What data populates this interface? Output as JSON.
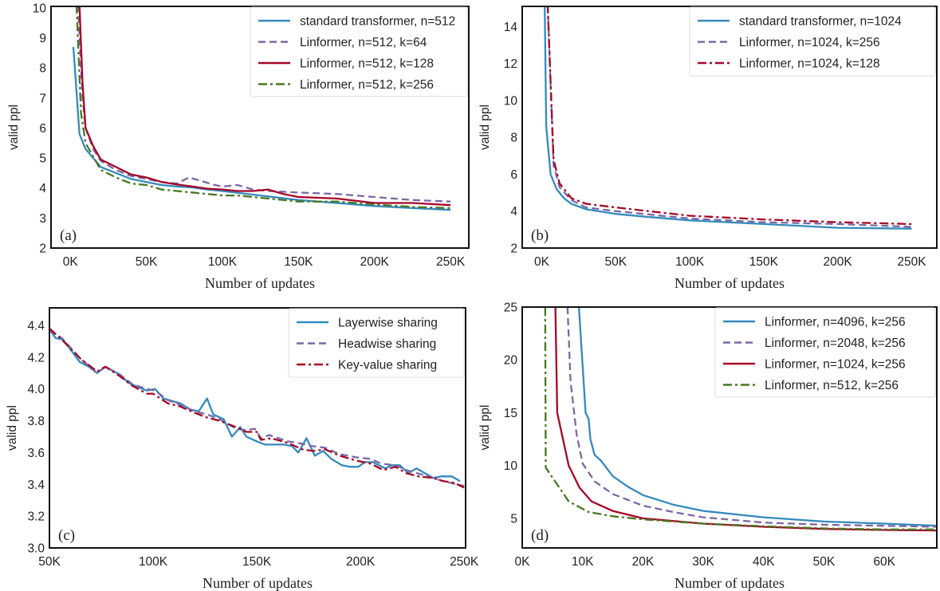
{
  "chart_data": [
    {
      "type": "line",
      "panel_label": "(a)",
      "xlabel": "Number of updates",
      "ylabel": "valid ppl",
      "xlim": [
        -12.7,
        262
      ],
      "ylim": [
        2,
        10.05
      ],
      "xticks": [
        0,
        50,
        100,
        150,
        200,
        250
      ],
      "xtick_labels": [
        "0K",
        "50K",
        "100K",
        "150K",
        "200K",
        "250K"
      ],
      "yticks": [
        2,
        3,
        4,
        5,
        6,
        7,
        8,
        9,
        10
      ],
      "ytick_labels": [
        "2",
        "3",
        "4",
        "5",
        "6",
        "7",
        "8",
        "9",
        "10"
      ],
      "grid": false,
      "legend_position": "top-right",
      "series": [
        {
          "name": "standard transformer, n=512",
          "color": "#348ABD",
          "linestyle": "solid",
          "x": [
            2,
            6,
            10,
            20,
            30,
            40,
            50,
            60,
            70,
            80,
            90,
            100,
            125,
            150,
            175,
            200,
            225,
            250
          ],
          "y": [
            8.7,
            5.8,
            5.3,
            4.7,
            4.5,
            4.3,
            4.2,
            4.1,
            4.05,
            4.02,
            3.95,
            3.9,
            3.75,
            3.6,
            3.5,
            3.4,
            3.33,
            3.27
          ]
        },
        {
          "name": "Linformer, n=512, k=64",
          "color": "#7A68A6",
          "linestyle": "dashed",
          "x": [
            5,
            8,
            10,
            15,
            20,
            30,
            40,
            50,
            60,
            70,
            78,
            85,
            95,
            100,
            110,
            120,
            130,
            150,
            175,
            200,
            225,
            250
          ],
          "y": [
            10.1,
            7.0,
            6.0,
            5.3,
            4.9,
            4.6,
            4.4,
            4.3,
            4.2,
            4.15,
            4.35,
            4.25,
            4.1,
            4.05,
            4.1,
            3.95,
            3.9,
            3.85,
            3.8,
            3.7,
            3.6,
            3.55
          ]
        },
        {
          "name": "Linformer, n=512, k=128",
          "color": "#A60628",
          "linestyle": "solid",
          "x": [
            6,
            8,
            10,
            15,
            20,
            30,
            40,
            50,
            60,
            70,
            80,
            90,
            100,
            110,
            120,
            130,
            140,
            150,
            175,
            200,
            225,
            250
          ],
          "y": [
            10.1,
            7.5,
            6.0,
            5.4,
            4.95,
            4.7,
            4.45,
            4.35,
            4.2,
            4.12,
            4.05,
            3.98,
            3.95,
            3.9,
            3.9,
            3.95,
            3.8,
            3.7,
            3.65,
            3.5,
            3.5,
            3.43
          ]
        },
        {
          "name": "Linformer, n=512, k=256",
          "color": "#467821",
          "linestyle": "dashdot",
          "x": [
            4,
            7,
            10,
            20,
            30,
            40,
            50,
            60,
            70,
            90,
            100,
            110,
            120,
            130,
            150,
            175,
            200,
            225,
            250
          ],
          "y": [
            10.1,
            6.5,
            5.5,
            4.6,
            4.35,
            4.15,
            4.1,
            3.95,
            3.9,
            3.8,
            3.75,
            3.75,
            3.7,
            3.65,
            3.55,
            3.55,
            3.45,
            3.37,
            3.33
          ]
        }
      ]
    },
    {
      "type": "line",
      "panel_label": "(b)",
      "xlabel": "Number of updates",
      "ylabel": "valid ppl",
      "xlim": [
        -13.2,
        267
      ],
      "ylim": [
        2,
        15.1
      ],
      "xticks": [
        0,
        50,
        100,
        150,
        200,
        250
      ],
      "xtick_labels": [
        "0K",
        "50K",
        "100K",
        "150K",
        "200K",
        "250K"
      ],
      "yticks": [
        2,
        4,
        6,
        8,
        10,
        12,
        14
      ],
      "ytick_labels": [
        "2",
        "4",
        "6",
        "8",
        "10",
        "12",
        "14"
      ],
      "grid": false,
      "legend_position": "top-right",
      "series": [
        {
          "name": "standard transformer, n=1024",
          "color": "#348ABD",
          "linestyle": "solid",
          "x": [
            2,
            3,
            6,
            10,
            15,
            20,
            30,
            50,
            70,
            100,
            150,
            200,
            250
          ],
          "y": [
            15.2,
            8.6,
            6.0,
            5.2,
            4.7,
            4.4,
            4.1,
            3.85,
            3.7,
            3.5,
            3.3,
            3.1,
            3.05
          ]
        },
        {
          "name": "Linformer, n=1024, k=256",
          "color": "#7A68A6",
          "linestyle": "dashed",
          "x": [
            4,
            8,
            12,
            20,
            30,
            50,
            100,
            150,
            200,
            250
          ],
          "y": [
            15.2,
            6.5,
            5.3,
            4.6,
            4.2,
            4.0,
            3.6,
            3.4,
            3.3,
            3.15
          ]
        },
        {
          "name": "Linformer, n=1024, k=128",
          "color": "#A60628",
          "linestyle": "dashdot",
          "x": [
            4,
            8,
            12,
            20,
            30,
            50,
            100,
            150,
            200,
            250
          ],
          "y": [
            15.2,
            6.8,
            5.5,
            4.7,
            4.4,
            4.2,
            3.75,
            3.55,
            3.4,
            3.3
          ]
        }
      ]
    },
    {
      "type": "line",
      "panel_label": "(c)",
      "xlabel": "Number of updates",
      "ylabel": "valid ppl",
      "xlim": [
        50,
        250.7
      ],
      "ylim": [
        3.0,
        4.51
      ],
      "xticks": [
        50,
        100,
        150,
        200,
        250
      ],
      "xtick_labels": [
        "50K",
        "100K",
        "150K",
        "200K",
        "250K"
      ],
      "yticks": [
        3.0,
        3.2,
        3.4,
        3.6,
        3.8,
        4.0,
        4.2,
        4.4
      ],
      "ytick_labels": [
        "3.0",
        "3.2",
        "3.4",
        "3.6",
        "3.8",
        "4.0",
        "4.2",
        "4.4"
      ],
      "grid": false,
      "legend_position": "top-right",
      "series": [
        {
          "name": "Layerwise sharing",
          "color": "#348ABD",
          "linestyle": "solid",
          "x": [
            50,
            53,
            56.6,
            64.6,
            69,
            73,
            77,
            84,
            88,
            93,
            97,
            101,
            105,
            113,
            118,
            122,
            126,
            129,
            134,
            138,
            142,
            145,
            150,
            154,
            159,
            163,
            167,
            170,
            174,
            178,
            182,
            186,
            191,
            195,
            199,
            202,
            206,
            212,
            215,
            219,
            223,
            227,
            231,
            235,
            239,
            244,
            248
          ],
          "y": [
            4.375,
            4.32,
            4.31,
            4.17,
            4.14,
            4.1,
            4.14,
            4.09,
            4.04,
            4.01,
            3.99,
            4.0,
            3.94,
            3.91,
            3.87,
            3.86,
            3.94,
            3.84,
            3.81,
            3.7,
            3.76,
            3.7,
            3.67,
            3.65,
            3.65,
            3.65,
            3.64,
            3.6,
            3.69,
            3.58,
            3.61,
            3.56,
            3.52,
            3.51,
            3.51,
            3.54,
            3.54,
            3.5,
            3.52,
            3.52,
            3.47,
            3.5,
            3.47,
            3.44,
            3.45,
            3.45,
            3.42
          ]
        },
        {
          "name": "Headwise sharing",
          "color": "#7A68A6",
          "linestyle": "dashed",
          "x": [
            50,
            56,
            65,
            73,
            77,
            84,
            90,
            97,
            101,
            107,
            113,
            120,
            126,
            132,
            140,
            145,
            149,
            152,
            156,
            165,
            170,
            177,
            183,
            190,
            198,
            205,
            210,
            217,
            222,
            230,
            240,
            250
          ],
          "y": [
            4.37,
            4.32,
            4.19,
            4.1,
            4.14,
            4.09,
            4.03,
            4.0,
            3.99,
            3.93,
            3.9,
            3.86,
            3.84,
            3.81,
            3.75,
            3.74,
            3.75,
            3.69,
            3.71,
            3.67,
            3.66,
            3.64,
            3.63,
            3.59,
            3.57,
            3.56,
            3.53,
            3.52,
            3.49,
            3.46,
            3.42,
            3.39
          ]
        },
        {
          "name": "Key-value sharing",
          "color": "#A60628",
          "linestyle": "dashdot",
          "x": [
            50,
            56,
            65,
            73,
            77,
            84,
            90,
            97,
            100,
            107,
            113,
            120,
            126,
            132,
            140,
            145,
            150,
            152,
            157,
            165,
            172,
            177,
            183,
            190,
            198,
            205,
            211,
            217,
            222,
            228,
            235,
            240,
            245,
            250
          ],
          "y": [
            4.38,
            4.31,
            4.19,
            4.11,
            4.14,
            4.08,
            4.02,
            3.97,
            3.97,
            3.91,
            3.89,
            3.85,
            3.82,
            3.8,
            3.76,
            3.73,
            3.73,
            3.68,
            3.69,
            3.66,
            3.62,
            3.61,
            3.62,
            3.58,
            3.55,
            3.53,
            3.49,
            3.51,
            3.47,
            3.45,
            3.44,
            3.42,
            3.41,
            3.38
          ]
        }
      ]
    },
    {
      "type": "line",
      "panel_label": "(d)",
      "xlabel": "Number of updates",
      "ylabel": "valid ppl",
      "xlim": [
        0,
        68.7
      ],
      "ylim": [
        2.2,
        25
      ],
      "xticks": [
        0,
        10,
        20,
        30,
        40,
        50,
        60
      ],
      "xtick_labels": [
        "0K",
        "10K",
        "20K",
        "30K",
        "40K",
        "50K",
        "60K"
      ],
      "yticks": [
        5,
        10,
        15,
        20,
        25
      ],
      "ytick_labels": [
        "5",
        "10",
        "15",
        "20",
        "25"
      ],
      "grid": false,
      "legend_position": "top-right",
      "series": [
        {
          "name": "Linformer, n=4096, k=256",
          "color": "#348ABD",
          "linestyle": "solid",
          "x": [
            9.4,
            10.5,
            11,
            11.3,
            12,
            13,
            15,
            17.5,
            20,
            25,
            30,
            40,
            50,
            60,
            68.7
          ],
          "y": [
            25,
            15,
            14.4,
            12.5,
            11,
            10.5,
            9.0,
            8.0,
            7.2,
            6.3,
            5.7,
            5.1,
            4.7,
            4.5,
            4.3
          ]
        },
        {
          "name": "Linformer, n=2048, k=256",
          "color": "#7A68A6",
          "linestyle": "dashed",
          "x": [
            7.5,
            8,
            9,
            10,
            12,
            15,
            20,
            25,
            30,
            40,
            50,
            60,
            68.7
          ],
          "y": [
            25,
            18,
            13,
            10.2,
            8.5,
            7.3,
            6.2,
            5.6,
            5.1,
            4.6,
            4.4,
            4.3,
            4.2
          ]
        },
        {
          "name": "Linformer, n=1024, k=256",
          "color": "#A60628",
          "linestyle": "solid",
          "x": [
            5.5,
            5.8,
            7.7,
            9.5,
            11.5,
            15,
            20,
            30,
            40,
            50,
            60,
            68.7
          ],
          "y": [
            25,
            15,
            10,
            7.9,
            6.6,
            5.7,
            5.0,
            4.5,
            4.2,
            4.0,
            3.9,
            3.85
          ]
        },
        {
          "name": "Linformer, n=512, k=256",
          "color": "#467821",
          "linestyle": "dashdot",
          "x": [
            3.8,
            3.9,
            7.7,
            11,
            15,
            20,
            30,
            40,
            50,
            60,
            68.7
          ],
          "y": [
            25,
            9.8,
            6.6,
            5.6,
            5.2,
            4.9,
            4.5,
            4.25,
            4.05,
            3.95,
            3.95
          ]
        }
      ]
    }
  ]
}
